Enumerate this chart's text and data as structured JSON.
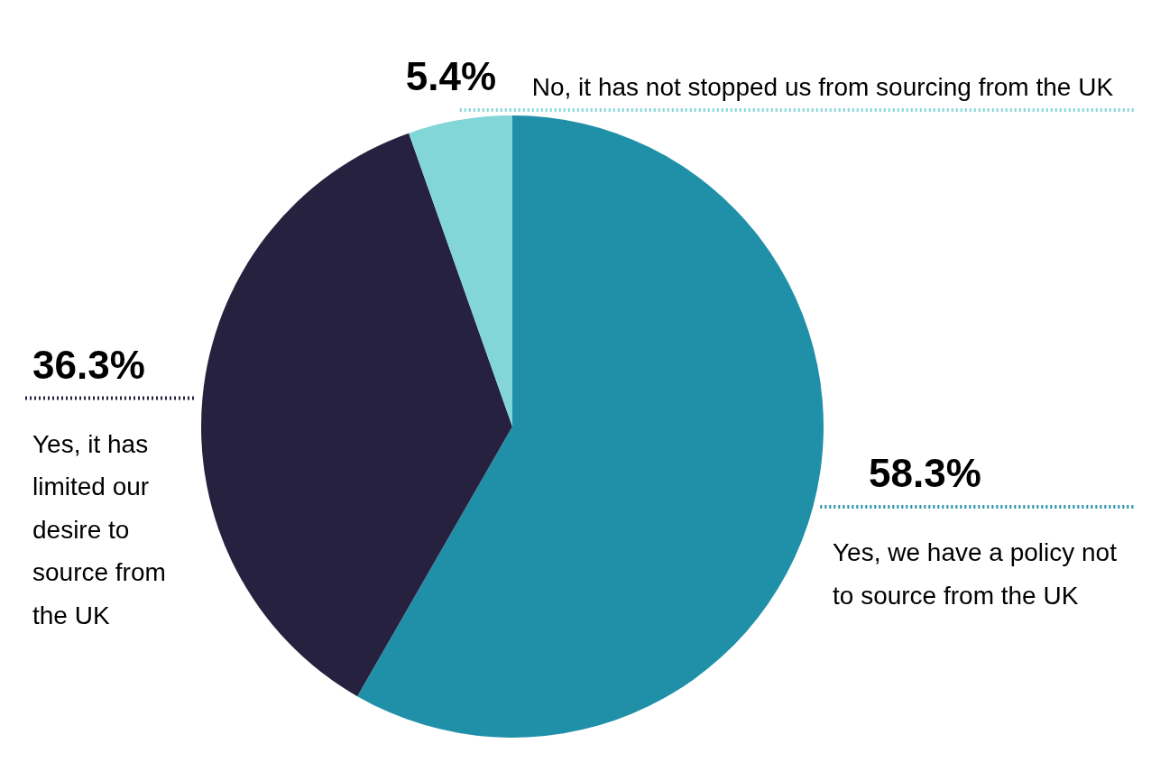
{
  "chart_data": {
    "type": "pie",
    "categories": [
      "Yes, we have a policy not to source from the UK",
      "Yes, it has limited our desire to source from the UK",
      "No, it has not stopped us from sourcing from the UK"
    ],
    "values": [
      58.3,
      36.3,
      5.4
    ],
    "colors": [
      "#2090a8",
      "#25213f",
      "#82d6d8"
    ],
    "value_labels": [
      "58.3%",
      "36.3%",
      "5.4%"
    ]
  }
}
